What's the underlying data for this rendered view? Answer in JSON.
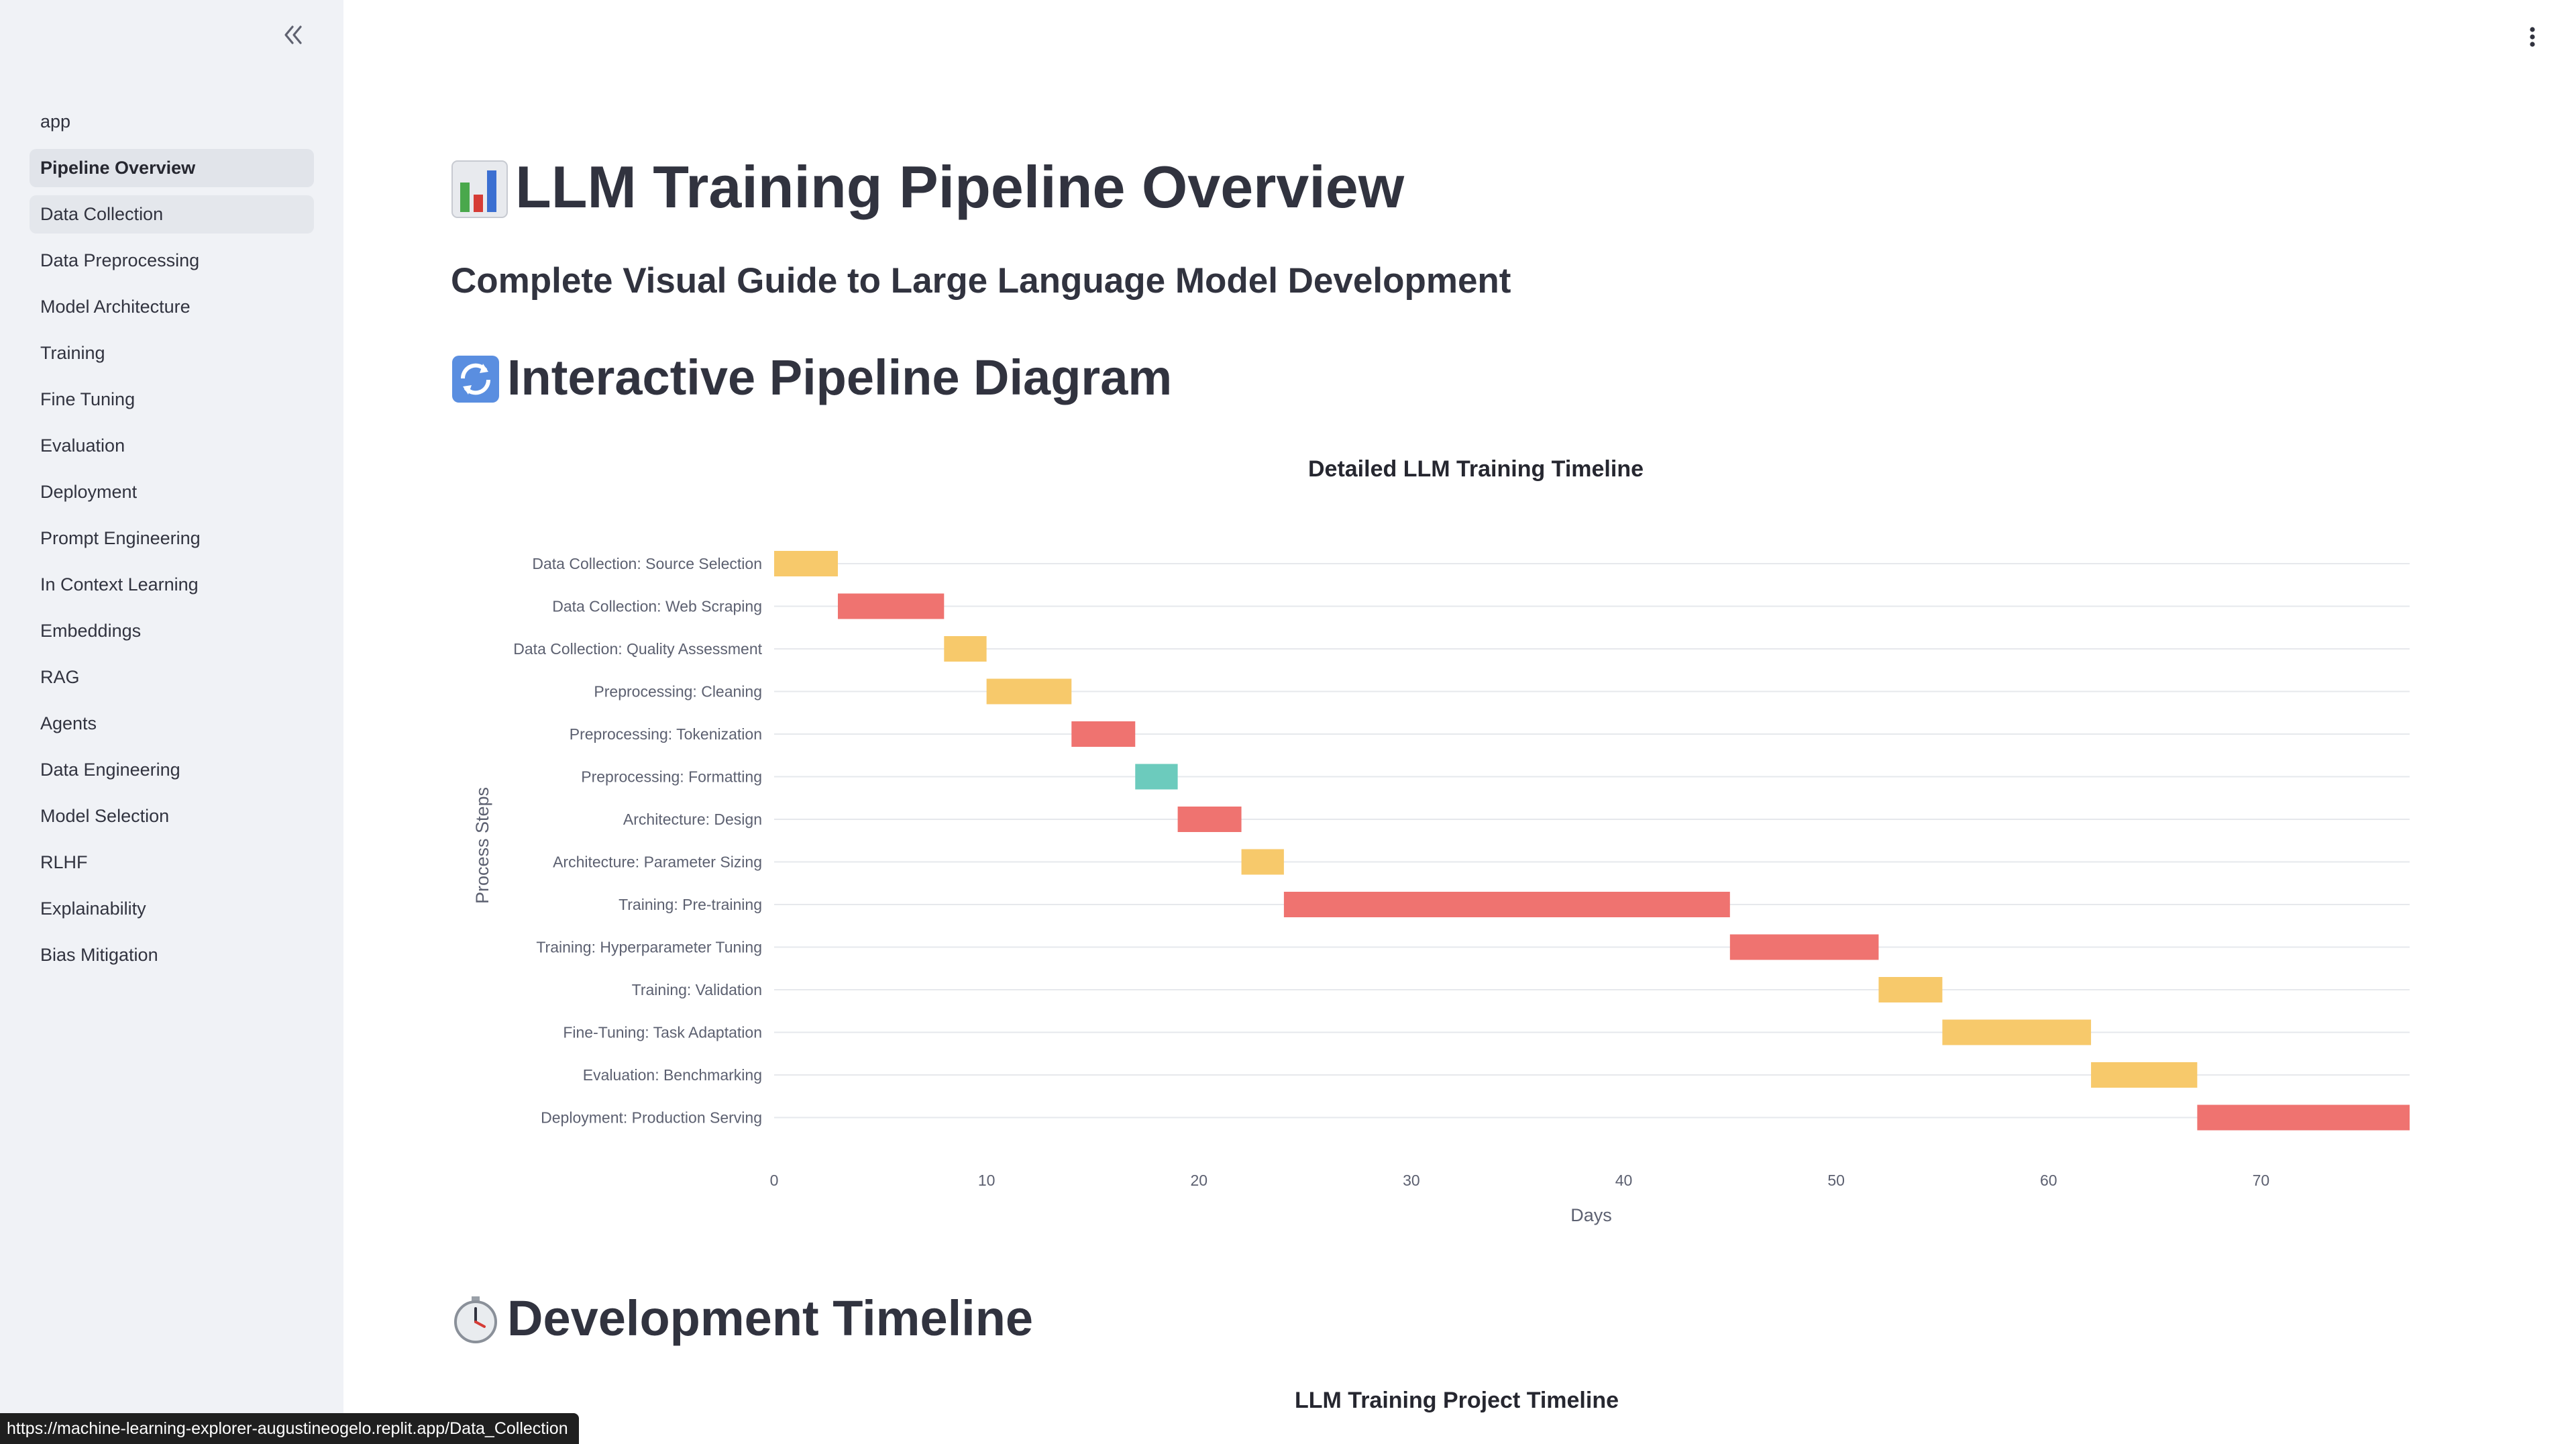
{
  "sidebar": {
    "items": [
      {
        "label": "app",
        "state": "normal"
      },
      {
        "label": "Pipeline Overview",
        "state": "selected"
      },
      {
        "label": "Data Collection",
        "state": "hover"
      },
      {
        "label": "Data Preprocessing",
        "state": "normal"
      },
      {
        "label": "Model Architecture",
        "state": "normal"
      },
      {
        "label": "Training",
        "state": "normal"
      },
      {
        "label": "Fine Tuning",
        "state": "normal"
      },
      {
        "label": "Evaluation",
        "state": "normal"
      },
      {
        "label": "Deployment",
        "state": "normal"
      },
      {
        "label": "Prompt Engineering",
        "state": "normal"
      },
      {
        "label": "In Context Learning",
        "state": "normal"
      },
      {
        "label": "Embeddings",
        "state": "normal"
      },
      {
        "label": "RAG",
        "state": "normal"
      },
      {
        "label": "Agents",
        "state": "normal"
      },
      {
        "label": "Data Engineering",
        "state": "normal"
      },
      {
        "label": "Model Selection",
        "state": "normal"
      },
      {
        "label": "RLHF",
        "state": "normal"
      },
      {
        "label": "Explainability",
        "state": "normal"
      },
      {
        "label": "Bias Mitigation",
        "state": "normal"
      }
    ],
    "collapse_icon": "double-chevron-left-icon"
  },
  "main": {
    "title": "LLM Training Pipeline Overview",
    "title_icon": "bar-chart-emoji-icon",
    "subtitle": "Complete Visual Guide to Large Language Model Development",
    "section1": "Interactive Pipeline Diagram",
    "section1_icon": "arrows-cycle-emoji-icon",
    "section2": "Development Timeline",
    "section2_icon": "stopwatch-emoji-icon",
    "chart2_title": "LLM Training Project Timeline"
  },
  "status_bar": {
    "url": "https://machine-learning-explorer-augustineogelo.replit.app/Data_Collection"
  },
  "colors": {
    "yellow": "#f7c96b",
    "red": "#ef7370",
    "teal": "#6ccbbd",
    "sidebar_bg": "#f0f2f6",
    "selected_bg": "#e1e4ea"
  },
  "chart_data": {
    "type": "bar",
    "orientation": "horizontal-gantt",
    "title": "Detailed LLM Training Timeline",
    "xlabel": "Days",
    "ylabel": "Process Steps",
    "xlim": [
      0,
      77
    ],
    "xticks": [
      0,
      10,
      20,
      30,
      40,
      50,
      60,
      70
    ],
    "grid": true,
    "tasks": [
      {
        "name": "Data Collection: Source Selection",
        "start": 0,
        "end": 3,
        "color": "#f7c96b"
      },
      {
        "name": "Data Collection: Web Scraping",
        "start": 3,
        "end": 8,
        "color": "#ef7370"
      },
      {
        "name": "Data Collection: Quality Assessment",
        "start": 8,
        "end": 10,
        "color": "#f7c96b"
      },
      {
        "name": "Preprocessing: Cleaning",
        "start": 10,
        "end": 14,
        "color": "#f7c96b"
      },
      {
        "name": "Preprocessing: Tokenization",
        "start": 14,
        "end": 17,
        "color": "#ef7370"
      },
      {
        "name": "Preprocessing: Formatting",
        "start": 17,
        "end": 19,
        "color": "#6ccbbd"
      },
      {
        "name": "Architecture: Design",
        "start": 19,
        "end": 22,
        "color": "#ef7370"
      },
      {
        "name": "Architecture: Parameter Sizing",
        "start": 22,
        "end": 24,
        "color": "#f7c96b"
      },
      {
        "name": "Training: Pre-training",
        "start": 24,
        "end": 45,
        "color": "#ef7370"
      },
      {
        "name": "Training: Hyperparameter Tuning",
        "start": 45,
        "end": 52,
        "color": "#ef7370"
      },
      {
        "name": "Training: Validation",
        "start": 52,
        "end": 55,
        "color": "#f7c96b"
      },
      {
        "name": "Fine-Tuning: Task Adaptation",
        "start": 55,
        "end": 62,
        "color": "#f7c96b"
      },
      {
        "name": "Evaluation: Benchmarking",
        "start": 62,
        "end": 67,
        "color": "#f7c96b"
      },
      {
        "name": "Deployment: Production Serving",
        "start": 67,
        "end": 77,
        "color": "#ef7370"
      }
    ]
  }
}
